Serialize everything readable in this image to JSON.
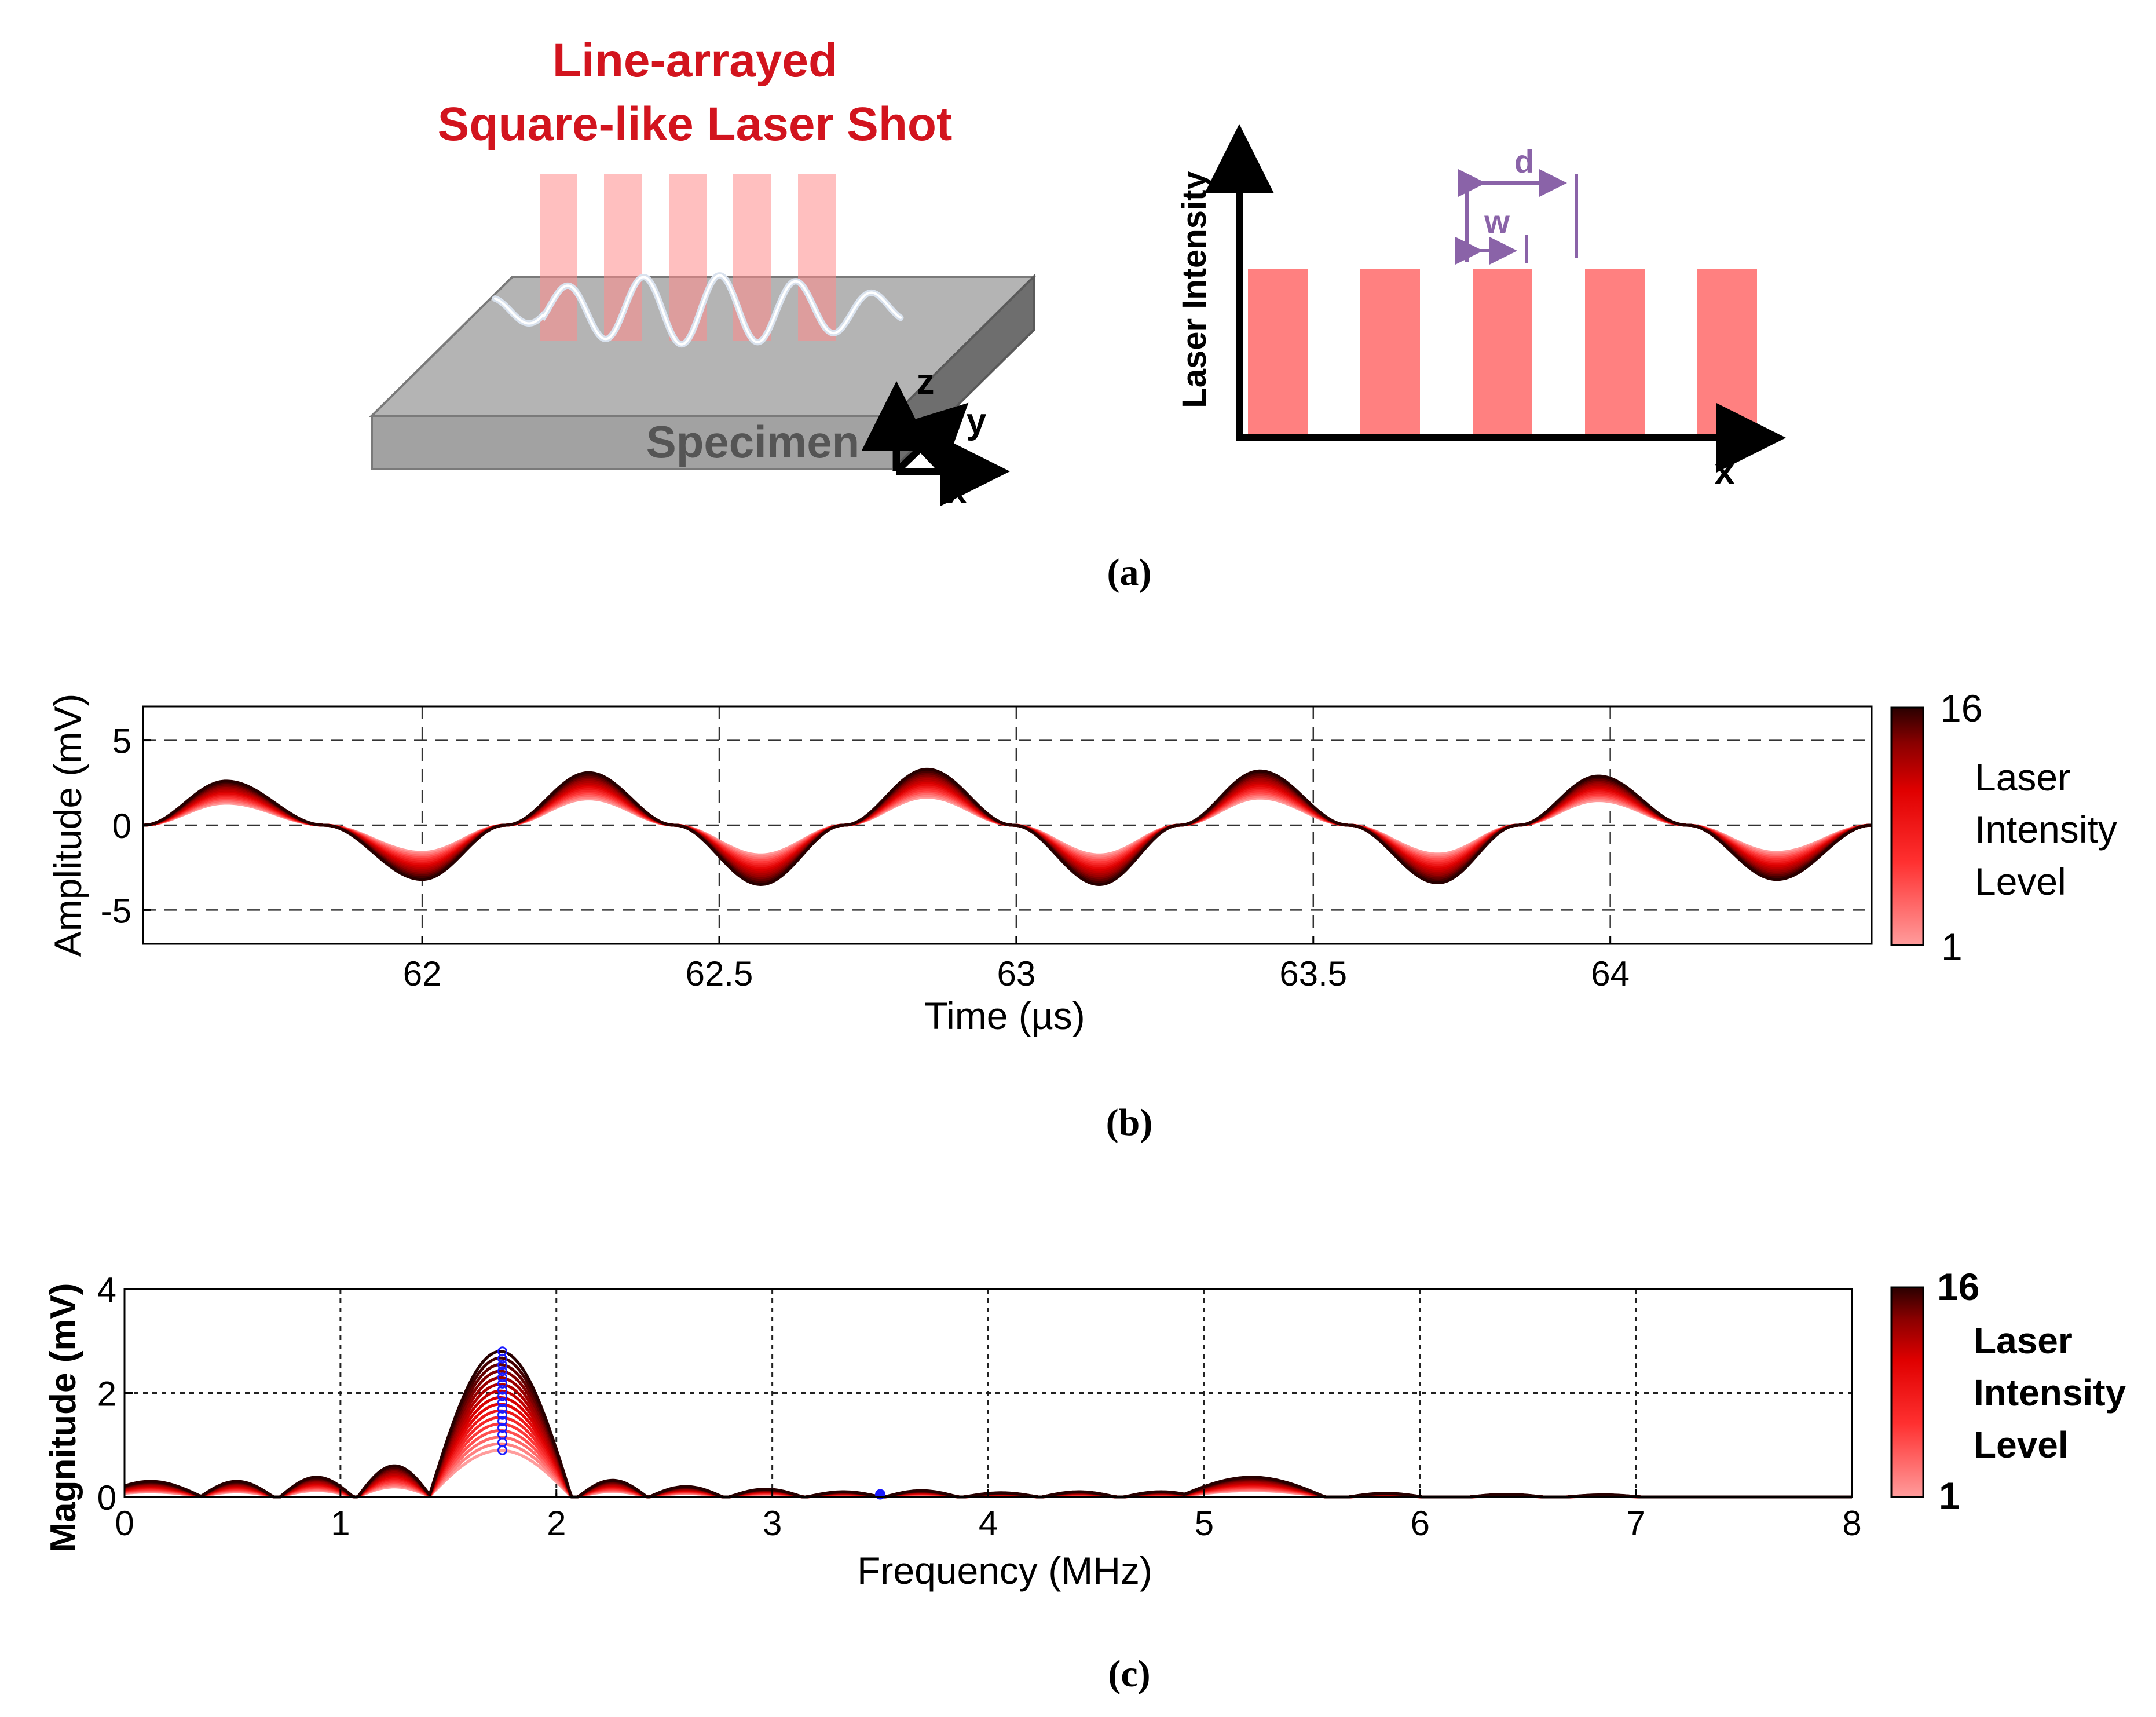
{
  "panel_a": {
    "title_line1": "Line-arrayed",
    "title_line2": "Square-like Laser Shot",
    "specimen_label": "Specimen",
    "axis_z": "z",
    "axis_y": "y",
    "axis_x": "x",
    "plot_ylabel": "Laser Intensity",
    "plot_xlabel": "x",
    "dim_d": "d",
    "dim_w": "w",
    "pulse_count": 5,
    "caption": "(a)"
  },
  "colors": {
    "accent_red": "#d2141e",
    "pulse_red": "#ff8080",
    "dim_purple": "#8a63a8",
    "marker_blue": "#1a1aff",
    "specimen_gray": "#a8a8a8"
  },
  "chart_data": [
    {
      "type": "line",
      "title": "",
      "xlabel": "Time (µs)",
      "ylabel": "Amplitude (mV)",
      "xlim": [
        61.53,
        64.44
      ],
      "ylim": [
        -7,
        7
      ],
      "xticks": [
        "62",
        "62.5",
        "63",
        "63.5",
        "64"
      ],
      "xtick_values": [
        62,
        62.5,
        63,
        63.5,
        64
      ],
      "yticks": [
        "5",
        "0",
        "-5"
      ],
      "ytick_values": [
        5,
        0,
        -5
      ],
      "grid": true,
      "series_count": 16,
      "wave_period_us": 0.565,
      "peaks": [
        {
          "x": 61.67,
          "y": 2.6
        },
        {
          "x": 62.28,
          "y": 3.1
        },
        {
          "x": 62.85,
          "y": 3.3
        },
        {
          "x": 63.41,
          "y": 3.2
        },
        {
          "x": 63.98,
          "y": 2.9
        }
      ],
      "troughs": [
        {
          "x": 62.0,
          "y": -3.2
        },
        {
          "x": 62.57,
          "y": -3.5
        },
        {
          "x": 63.14,
          "y": -3.5
        },
        {
          "x": 63.71,
          "y": -3.4
        },
        {
          "x": 64.28,
          "y": -3.2
        }
      ],
      "amplitude_scale_range": [
        0.5,
        1.0
      ],
      "colorbar": {
        "min_label": "1",
        "max_label": "16",
        "label_lines": [
          "Laser",
          "Intensity",
          "Level"
        ]
      },
      "caption": "(b)"
    },
    {
      "type": "line",
      "title": "",
      "xlabel": "Frequency (MHz)",
      "ylabel": "Magnitude (mV)",
      "xlim": [
        0,
        8
      ],
      "ylim": [
        0,
        4
      ],
      "xticks": [
        "0",
        "1",
        "2",
        "3",
        "4",
        "5",
        "6",
        "7",
        "8"
      ],
      "xtick_values": [
        0,
        1,
        2,
        3,
        4,
        5,
        6,
        7,
        8
      ],
      "yticks": [
        "0",
        "2",
        "4"
      ],
      "ytick_values": [
        0,
        2,
        4
      ],
      "grid": true,
      "series_count": 16,
      "spectrum_lobes": [
        {
          "center": 0.12,
          "half_width": 0.24,
          "height": 0.3
        },
        {
          "center": 0.52,
          "half_width": 0.17,
          "height": 0.3
        },
        {
          "center": 0.89,
          "half_width": 0.17,
          "height": 0.38
        },
        {
          "center": 1.25,
          "half_width": 0.17,
          "height": 0.6
        },
        {
          "center": 1.74,
          "half_width": 0.33,
          "height": 2.8
        },
        {
          "center": 2.26,
          "half_width": 0.16,
          "height": 0.32
        },
        {
          "center": 2.6,
          "half_width": 0.17,
          "height": 0.2
        },
        {
          "center": 2.97,
          "half_width": 0.17,
          "height": 0.15
        },
        {
          "center": 3.33,
          "half_width": 0.17,
          "height": 0.1
        },
        {
          "center": 3.69,
          "half_width": 0.17,
          "height": 0.12
        },
        {
          "center": 4.06,
          "half_width": 0.17,
          "height": 0.08
        },
        {
          "center": 4.42,
          "half_width": 0.17,
          "height": 0.1
        },
        {
          "center": 4.8,
          "half_width": 0.17,
          "height": 0.1
        },
        {
          "center": 5.22,
          "half_width": 0.34,
          "height": 0.38
        },
        {
          "center": 5.84,
          "half_width": 0.17,
          "height": 0.07
        },
        {
          "center": 6.4,
          "half_width": 0.17,
          "height": 0.05
        },
        {
          "center": 6.85,
          "half_width": 0.17,
          "height": 0.04
        }
      ],
      "peak_markers_x": 1.75,
      "peak_markers_y": [
        0.9,
        1.05,
        1.2,
        1.33,
        1.46,
        1.58,
        1.7,
        1.82,
        1.94,
        2.06,
        2.18,
        2.3,
        2.42,
        2.54,
        2.66,
        2.8
      ],
      "extra_marker": {
        "x": 3.5,
        "y": 0.05
      },
      "colorbar": {
        "min_label": "1",
        "max_label": "16",
        "label_lines": [
          "Laser",
          "Intensity",
          "Level"
        ]
      },
      "caption": "(c)"
    }
  ]
}
